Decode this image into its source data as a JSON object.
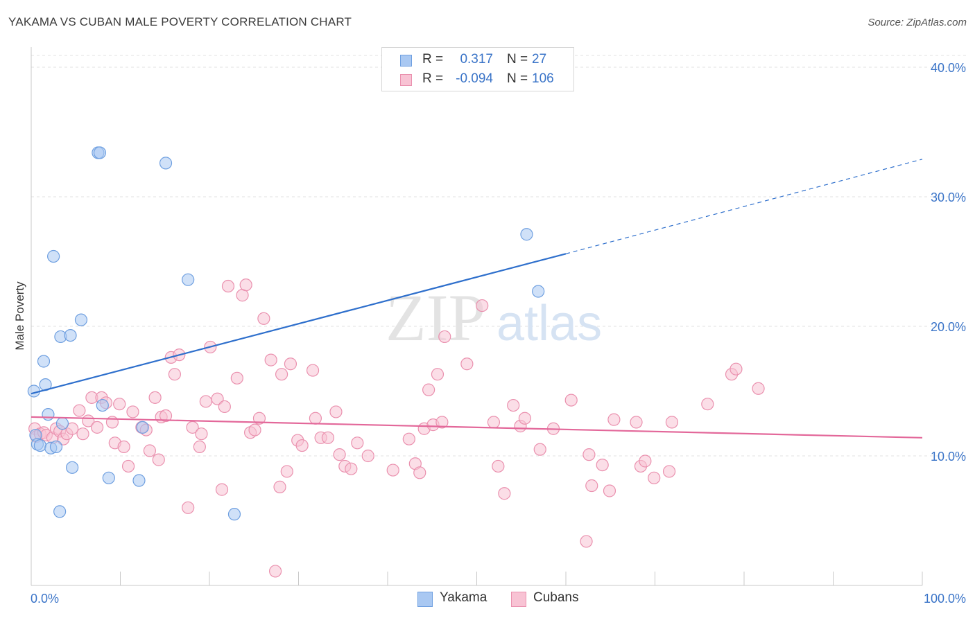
{
  "title": "YAKAMA VS CUBAN MALE POVERTY CORRELATION CHART",
  "source": "Source: ZipAtlas.com",
  "watermark": {
    "zip": "ZIP",
    "atlas": "atlas"
  },
  "legend": {
    "rows": [
      {
        "r_label": "R =",
        "r_value": "0.317",
        "n_label": "N =",
        "n_value": "27",
        "color": "#a9c8f2",
        "border": "#6e9fe0"
      },
      {
        "r_label": "R =",
        "r_value": "-0.094",
        "n_label": "N = ",
        "n_value": "106",
        "color": "#f8c3d4",
        "border": "#ea90ae"
      }
    ],
    "bottom": [
      {
        "label": "Yakama",
        "color": "#a9c8f2",
        "border": "#6e9fe0"
      },
      {
        "label": "Cubans",
        "color": "#f8c3d4",
        "border": "#ea90ae"
      }
    ]
  },
  "chart_data": {
    "type": "scatter",
    "title": "YAKAMA VS CUBAN MALE POVERTY CORRELATION CHART",
    "xlabel": "",
    "ylabel": "Male Poverty",
    "xlim": [
      0,
      100
    ],
    "ylim": [
      0,
      40
    ],
    "x_tick_labels": [
      "0.0%",
      "100.0%"
    ],
    "y_ticks": [
      10,
      20,
      30,
      40
    ],
    "y_tick_labels": [
      "10.0%",
      "20.0%",
      "30.0%",
      "40.0%"
    ],
    "grid": true,
    "legend_placement": "top-center",
    "series": [
      {
        "name": "Yakama",
        "color": "#6e9fe0",
        "fill": "#a9c8f2",
        "trend_color": "#2e6fcc",
        "trend": {
          "x0": 0,
          "y0": 14.8,
          "x1": 60,
          "y1": 25.6,
          "dashed_to_x": 100,
          "dashed_to_y": 32.9
        },
        "points": [
          [
            0.3,
            15.0
          ],
          [
            0.5,
            11.6
          ],
          [
            0.7,
            10.9
          ],
          [
            1.0,
            10.8
          ],
          [
            1.4,
            17.3
          ],
          [
            1.6,
            15.5
          ],
          [
            1.9,
            13.2
          ],
          [
            2.2,
            10.6
          ],
          [
            2.5,
            25.4
          ],
          [
            2.8,
            10.7
          ],
          [
            3.2,
            5.7
          ],
          [
            3.3,
            19.2
          ],
          [
            3.5,
            12.5
          ],
          [
            4.4,
            19.3
          ],
          [
            4.6,
            9.1
          ],
          [
            5.6,
            20.5
          ],
          [
            7.5,
            33.4
          ],
          [
            7.7,
            33.4
          ],
          [
            8.0,
            13.9
          ],
          [
            8.7,
            8.3
          ],
          [
            12.1,
            8.1
          ],
          [
            12.5,
            12.2
          ],
          [
            15.1,
            32.6
          ],
          [
            17.6,
            23.6
          ],
          [
            22.8,
            5.5
          ],
          [
            55.6,
            27.1
          ],
          [
            56.9,
            22.7
          ]
        ]
      },
      {
        "name": "Cubans",
        "color": "#ea90ae",
        "fill": "#f8c3d4",
        "trend_color": "#e3689a",
        "trend": {
          "x0": 0,
          "y0": 13.0,
          "x1": 100,
          "y1": 11.4
        },
        "points": [
          [
            0.4,
            12.1
          ],
          [
            0.6,
            11.5
          ],
          [
            1.0,
            11.7
          ],
          [
            1.4,
            11.8
          ],
          [
            1.7,
            11.6
          ],
          [
            2.4,
            11.4
          ],
          [
            2.8,
            12.1
          ],
          [
            3.2,
            11.9
          ],
          [
            3.6,
            11.3
          ],
          [
            4.0,
            11.7
          ],
          [
            4.6,
            12.1
          ],
          [
            5.4,
            13.5
          ],
          [
            5.8,
            11.7
          ],
          [
            6.4,
            12.7
          ],
          [
            6.8,
            14.5
          ],
          [
            7.4,
            12.2
          ],
          [
            7.9,
            14.5
          ],
          [
            8.4,
            14.1
          ],
          [
            9.1,
            12.6
          ],
          [
            9.4,
            11.0
          ],
          [
            9.9,
            14.0
          ],
          [
            10.4,
            10.7
          ],
          [
            10.9,
            9.2
          ],
          [
            11.4,
            13.4
          ],
          [
            12.4,
            12.2
          ],
          [
            12.9,
            12.0
          ],
          [
            13.3,
            10.4
          ],
          [
            13.9,
            14.5
          ],
          [
            14.3,
            9.7
          ],
          [
            14.6,
            13.0
          ],
          [
            15.1,
            13.1
          ],
          [
            15.7,
            17.6
          ],
          [
            16.1,
            16.3
          ],
          [
            16.6,
            17.8
          ],
          [
            17.6,
            6.0
          ],
          [
            18.1,
            12.2
          ],
          [
            18.9,
            10.7
          ],
          [
            19.1,
            11.7
          ],
          [
            19.6,
            14.2
          ],
          [
            20.1,
            18.4
          ],
          [
            20.9,
            14.4
          ],
          [
            21.4,
            7.4
          ],
          [
            21.7,
            13.8
          ],
          [
            22.1,
            23.1
          ],
          [
            23.1,
            16.0
          ],
          [
            23.7,
            22.4
          ],
          [
            24.1,
            23.2
          ],
          [
            24.6,
            11.8
          ],
          [
            25.1,
            12.0
          ],
          [
            25.6,
            12.9
          ],
          [
            26.1,
            20.6
          ],
          [
            26.9,
            17.4
          ],
          [
            27.4,
            1.1
          ],
          [
            27.9,
            7.6
          ],
          [
            28.1,
            16.3
          ],
          [
            28.7,
            8.8
          ],
          [
            29.1,
            17.1
          ],
          [
            29.9,
            11.2
          ],
          [
            30.4,
            10.8
          ],
          [
            31.6,
            16.6
          ],
          [
            31.9,
            12.9
          ],
          [
            32.5,
            11.4
          ],
          [
            33.3,
            11.4
          ],
          [
            34.2,
            13.4
          ],
          [
            34.6,
            10.1
          ],
          [
            35.2,
            9.2
          ],
          [
            35.9,
            9.0
          ],
          [
            36.6,
            11.0
          ],
          [
            37.8,
            10.0
          ],
          [
            40.6,
            8.9
          ],
          [
            42.4,
            11.3
          ],
          [
            43.1,
            9.4
          ],
          [
            43.6,
            8.7
          ],
          [
            44.1,
            12.1
          ],
          [
            44.6,
            15.1
          ],
          [
            45.1,
            12.4
          ],
          [
            45.6,
            16.3
          ],
          [
            46.1,
            12.6
          ],
          [
            46.4,
            19.2
          ],
          [
            48.9,
            17.1
          ],
          [
            50.6,
            21.6
          ],
          [
            51.9,
            12.6
          ],
          [
            52.4,
            9.2
          ],
          [
            53.1,
            7.1
          ],
          [
            54.1,
            13.9
          ],
          [
            54.9,
            12.3
          ],
          [
            55.4,
            12.9
          ],
          [
            57.1,
            10.5
          ],
          [
            58.6,
            12.1
          ],
          [
            60.6,
            14.3
          ],
          [
            62.6,
            10.1
          ],
          [
            62.9,
            7.7
          ],
          [
            64.1,
            9.3
          ],
          [
            64.9,
            7.3
          ],
          [
            65.4,
            12.8
          ],
          [
            67.9,
            12.6
          ],
          [
            68.4,
            9.2
          ],
          [
            68.9,
            9.6
          ],
          [
            69.9,
            8.3
          ],
          [
            71.6,
            8.8
          ],
          [
            71.9,
            12.6
          ],
          [
            75.9,
            14.0
          ],
          [
            78.6,
            16.3
          ],
          [
            79.1,
            16.7
          ],
          [
            81.6,
            15.2
          ],
          [
            62.3,
            3.4
          ]
        ]
      }
    ]
  }
}
